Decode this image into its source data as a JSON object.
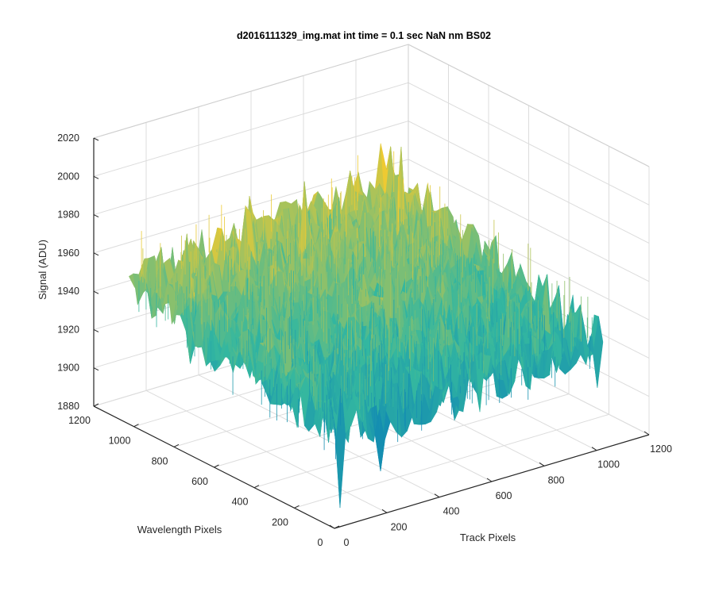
{
  "chart_data": {
    "type": "surface",
    "title": "d2016111329_img.mat int time = 0.1 sec  NaN nm BS02",
    "xlabel": "Track Pixels",
    "ylabel": "Wavelength Pixels",
    "zlabel": "Signal (ADU)",
    "xlim": [
      0,
      1200
    ],
    "ylim": [
      0,
      1200
    ],
    "zlim": [
      1880,
      2020
    ],
    "x_ticks": [
      "0",
      "200",
      "400",
      "600",
      "800",
      "1000",
      "1200"
    ],
    "y_ticks": [
      "0",
      "200",
      "400",
      "600",
      "800",
      "1000",
      "1200"
    ],
    "z_ticks": [
      "1880",
      "1900",
      "1920",
      "1940",
      "1960",
      "1980",
      "2000",
      "2020"
    ],
    "grid": true,
    "colormap": "parula",
    "surface_extent": {
      "x": [
        0,
        1024
      ],
      "y": [
        0,
        1024
      ]
    },
    "signal_profile": {
      "corner_track0_wl1024": 1955,
      "corner_track1024_wl1024": 1962,
      "corner_track0_wl0": 1930,
      "corner_track1024_wl0": 1935,
      "noise_amplitude": 15
    }
  },
  "colors": {
    "surface_low": "#0072bd",
    "surface_mid": "#33b7a0",
    "surface_high": "#eeca32",
    "grid": "#dcdcdc",
    "axis": "#262626"
  }
}
